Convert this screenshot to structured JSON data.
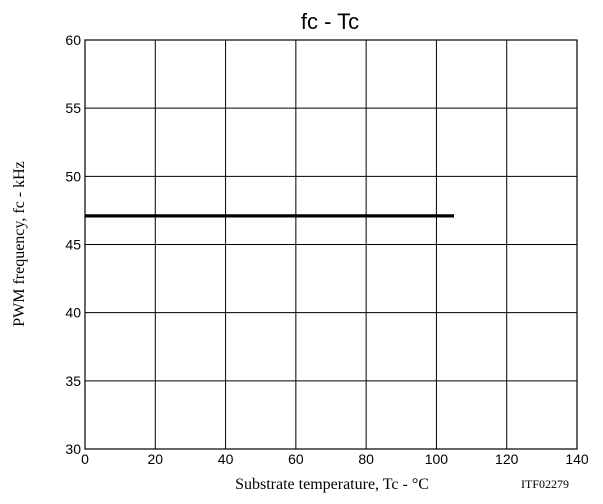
{
  "chart_data": {
    "type": "line",
    "title": "fc - Tc",
    "xlabel": "Substrate temperature, Tc - °C",
    "ylabel": "PWM frequency, fc - kHz",
    "figure_code": "ITF02279",
    "xlim": [
      0,
      140
    ],
    "ylim": [
      30,
      60
    ],
    "xticks": [
      0,
      20,
      40,
      60,
      80,
      100,
      120,
      140
    ],
    "yticks": [
      30,
      35,
      40,
      45,
      50,
      55,
      60
    ],
    "grid": true,
    "series": [
      {
        "x": [
          0,
          105
        ],
        "y": [
          47.1,
          47.1
        ]
      }
    ]
  }
}
